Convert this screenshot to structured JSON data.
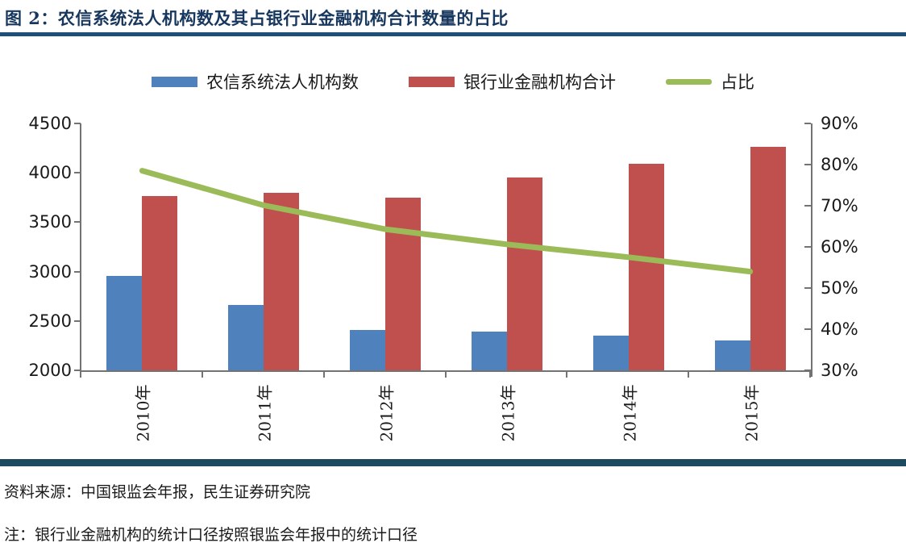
{
  "title": "图 2：农信系统法人机构数及其占银行业金融机构合计数量的占比",
  "footer": {
    "source": "资料来源：中国银监会年报，民生证券研究院",
    "note": "注：银行业金融机构的统计口径按照银监会年报中的统计口径"
  },
  "colors": {
    "title_text": "#17375E",
    "title_rule": "#1F4E79",
    "footer_rule": "#1D4A5F",
    "axis": "#737373",
    "bar_blue": "#4F81BD",
    "bar_red": "#C0504D",
    "line_green": "#9BBB59"
  },
  "chart_data": {
    "type": "bar",
    "subtype": "grouped bars with overlay line, dual y-axes",
    "title": "农信系统法人机构数及其占银行业金融机构合计数量的占比",
    "categories": [
      "2010年",
      "2011年",
      "2012年",
      "2013年",
      "2014年",
      "2015年"
    ],
    "series": [
      {
        "name": "农信系统法人机构数",
        "type": "bar",
        "axis": "left",
        "color": "#4F81BD",
        "values": [
          2958,
          2665,
          2411,
          2394,
          2350,
          2303
        ]
      },
      {
        "name": "银行业金融机构合计",
        "type": "bar",
        "axis": "left",
        "color": "#C0504D",
        "values": [
          3769,
          3800,
          3747,
          3949,
          4089,
          4262
        ]
      },
      {
        "name": "占比",
        "type": "line",
        "axis": "right",
        "color": "#9BBB59",
        "values": [
          78.5,
          70.1,
          64.3,
          60.6,
          57.5,
          54.0
        ]
      }
    ],
    "left_axis": {
      "min": 2000,
      "max": 4500,
      "step": 500,
      "tick_labels": [
        "2000",
        "2500",
        "3000",
        "3500",
        "4000",
        "4500"
      ]
    },
    "right_axis": {
      "min": 30,
      "max": 90,
      "step": 10,
      "tick_labels": [
        "30%",
        "40%",
        "50%",
        "60%",
        "70%",
        "80%",
        "90%"
      ]
    },
    "grid": false,
    "legend_position": "top"
  }
}
